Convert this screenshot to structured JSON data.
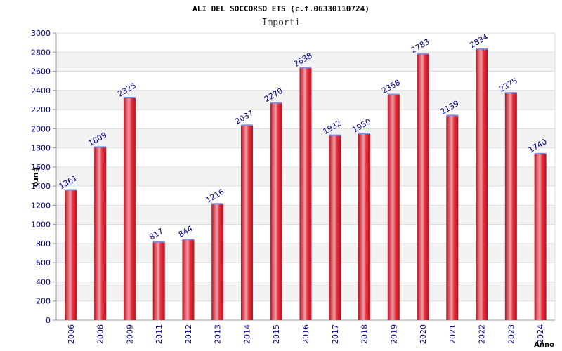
{
  "chart_data": {
    "type": "bar",
    "title": "ALI DEL SOCCORSO ETS (c.f.06330110724)",
    "subtitle": "Importi",
    "ylabel": "Euro",
    "xlabel": "Anno",
    "categories": [
      "2006",
      "2008",
      "2009",
      "2011",
      "2012",
      "2013",
      "2014",
      "2015",
      "2016",
      "2017",
      "2018",
      "2019",
      "2020",
      "2021",
      "2022",
      "2023",
      "2024"
    ],
    "values": [
      1361,
      1809,
      2325,
      817,
      844,
      1216,
      2037,
      2270,
      2638,
      1932,
      1950,
      2358,
      2783,
      2139,
      2834,
      2375,
      1740
    ],
    "data_labels": [
      "1361",
      "1809",
      "2325",
      "817",
      "844",
      "1216",
      "2037",
      "2270",
      "2638",
      "1932",
      "1950",
      "2358",
      "2783",
      "2139",
      "2834",
      "2375",
      "1740"
    ],
    "ylim": [
      0,
      3000
    ],
    "yticks": [
      0,
      200,
      400,
      600,
      800,
      1000,
      1200,
      1400,
      1600,
      1800,
      2000,
      2200,
      2400,
      2600,
      2800,
      3000
    ],
    "grid": true,
    "colors": {
      "bar_light": "#f2a0a8",
      "bar_mid": "#e8303c",
      "bar_dark": "#b81020",
      "bar_top": "#8090e0",
      "label": "#00008b",
      "tick": "#00008b",
      "band": "#f2f2f2",
      "gridline": "#dcdcdc",
      "axis": "#999999"
    }
  }
}
